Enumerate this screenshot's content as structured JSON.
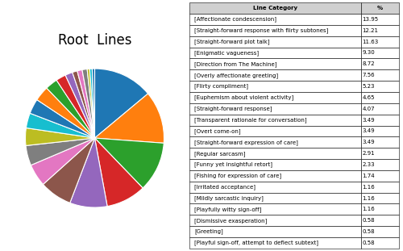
{
  "chart_data": {
    "type": "pie",
    "title": "Root  Lines",
    "categories": [
      "[Affectionate condescension]",
      "[Straight-forward response with flirty subtones]",
      "[Straight-forward plot talk]",
      "[Enigmatic vagueness]",
      "[Direction from The Machine]",
      "[Overly affectionate greeting]",
      "[Flirty compliment]",
      "[Euphemism about violent activity]",
      "[Straight-forward response]",
      "[Transparent rationale for conversation]",
      "[Overt come-on]",
      "[Straight-forward expression of care]",
      "[Regular sarcasm]",
      "[Funny yet insightful retort]",
      "[Fishing for expression of care]",
      "[Irritated acceptance]",
      "[Mildly sarcastic inquiry]",
      "[Playfully witty sign-off]",
      "[Dismissive exasperation]",
      "[Greeting]",
      "[Playful sign-off, attempt to deflect subtext]"
    ],
    "values": [
      13.95,
      12.21,
      11.63,
      9.3,
      8.72,
      7.56,
      5.23,
      4.65,
      4.07,
      3.49,
      3.49,
      3.49,
      2.91,
      2.33,
      1.74,
      1.16,
      1.16,
      1.16,
      0.58,
      0.58,
      0.58
    ],
    "value_labels": [
      "13.95",
      "12.21",
      "11.63",
      "9.30",
      "8.72",
      "7.56",
      "5.23",
      "4.65",
      "4.07",
      "3.49",
      "3.49",
      "3.49",
      "2.91",
      "2.33",
      "1.74",
      "1.16",
      "1.16",
      "1.16",
      "0.58",
      "0.58",
      "0.58"
    ],
    "column_labels": [
      "Line Category",
      "%"
    ]
  }
}
